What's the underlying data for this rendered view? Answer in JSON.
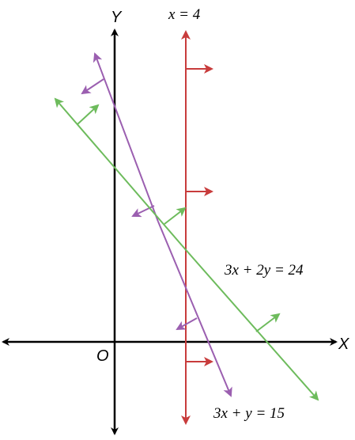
{
  "axes": {
    "y_label": "Y",
    "x_label": "X",
    "origin_label": "O"
  },
  "lines": [
    {
      "label": "x = 4"
    },
    {
      "label": "3x + 2y = 24"
    },
    {
      "label": "3x + y = 15"
    }
  ]
}
